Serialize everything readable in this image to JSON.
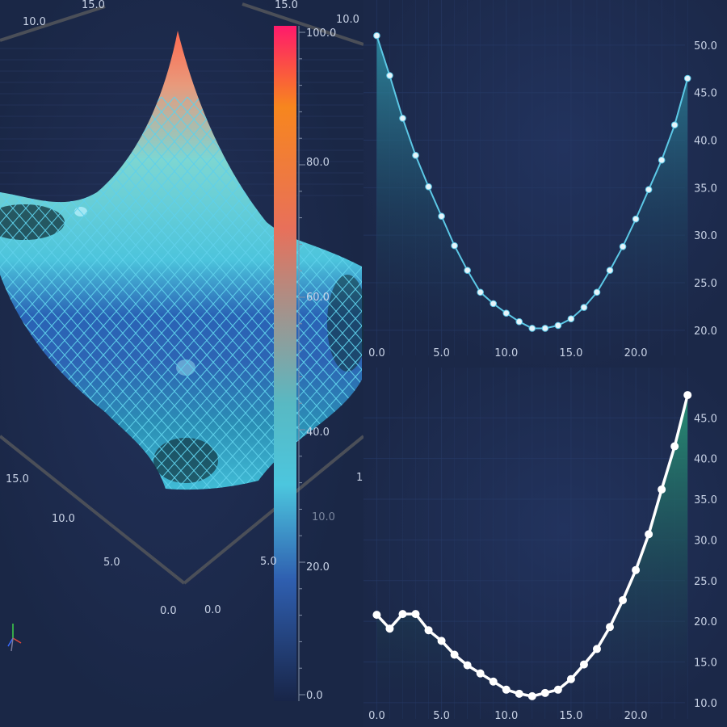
{
  "chart_data": [
    {
      "type": "surface3d",
      "axis_labels": {
        "back_left": "10.0",
        "back_mid": "15.0",
        "back_right": "15.0",
        "back_far": "10.0",
        "left_15": "15.0",
        "left_10": "10.0",
        "left_5": "5.0",
        "origin_left": "0.0",
        "origin_right": "0.0",
        "right_5": "5.0",
        "right_10": "10.0",
        "right_partial": "1"
      },
      "colorbar": {
        "range": [
          0,
          100
        ],
        "ticks": [
          "100.0",
          "80.0",
          "60.0",
          "40.0",
          "20.0",
          "0.0"
        ],
        "colors": [
          "#ff1a6b",
          "#f7861e",
          "#e8705a",
          "#4cc6de",
          "#2f5fb0",
          "#182548"
        ]
      },
      "colors": {
        "mesh": "#5fd0ea",
        "surface_high": "#f08a5a",
        "surface_mid": "#4dc3d9",
        "surface_low": "#1e4d9a",
        "axis": "#4b4f58"
      }
    },
    {
      "type": "line",
      "x_ticks": [
        "0.0",
        "5.0",
        "10.0",
        "15.0",
        "20.0"
      ],
      "y_ticks": [
        "20.0",
        "25.0",
        "30.0",
        "35.0",
        "40.0",
        "45.0",
        "50.0"
      ],
      "xlim": [
        -0.4,
        23.8
      ],
      "ylim": [
        18.2,
        52.2
      ],
      "x": [
        0,
        1,
        2,
        3,
        4,
        5,
        6,
        7,
        8,
        9,
        10,
        11,
        12,
        13,
        14,
        15,
        16,
        17,
        18,
        19,
        20,
        21,
        22,
        23,
        24
      ],
      "y": [
        51.0,
        46.8,
        42.3,
        38.4,
        35.1,
        32.0,
        28.9,
        26.3,
        24.0,
        22.8,
        21.8,
        20.9,
        20.2,
        20.2,
        20.5,
        21.2,
        22.4,
        24.0,
        26.3,
        28.8,
        31.7,
        34.8,
        37.9,
        41.6,
        46.5
      ],
      "colors": {
        "line": "#5cc8e6",
        "marker": "#e6f4fa",
        "fill": "#2a7f96"
      }
    },
    {
      "type": "line",
      "x_ticks": [
        "0.0",
        "5.0",
        "10.0",
        "15.0",
        "20.0"
      ],
      "y_ticks": [
        "10.0",
        "15.0",
        "20.0",
        "25.0",
        "30.0",
        "35.0",
        "40.0",
        "45.0"
      ],
      "xlim": [
        -0.4,
        23.8
      ],
      "ylim": [
        9.0,
        48.7
      ],
      "x": [
        0,
        1,
        2,
        3,
        4,
        5,
        6,
        7,
        8,
        9,
        10,
        11,
        12,
        13,
        14,
        15,
        16,
        17,
        18,
        19,
        20,
        21,
        22,
        23,
        24
      ],
      "y": [
        20.8,
        19.1,
        20.9,
        20.9,
        18.9,
        17.6,
        15.9,
        14.6,
        13.6,
        12.6,
        11.6,
        11.1,
        10.8,
        11.2,
        11.6,
        12.9,
        14.7,
        16.6,
        19.3,
        22.6,
        26.3,
        30.7,
        36.2,
        41.5,
        47.8
      ],
      "colors": {
        "line": "#ffffff",
        "marker": "#ffffff",
        "fill": "#2a9a7a"
      }
    }
  ]
}
